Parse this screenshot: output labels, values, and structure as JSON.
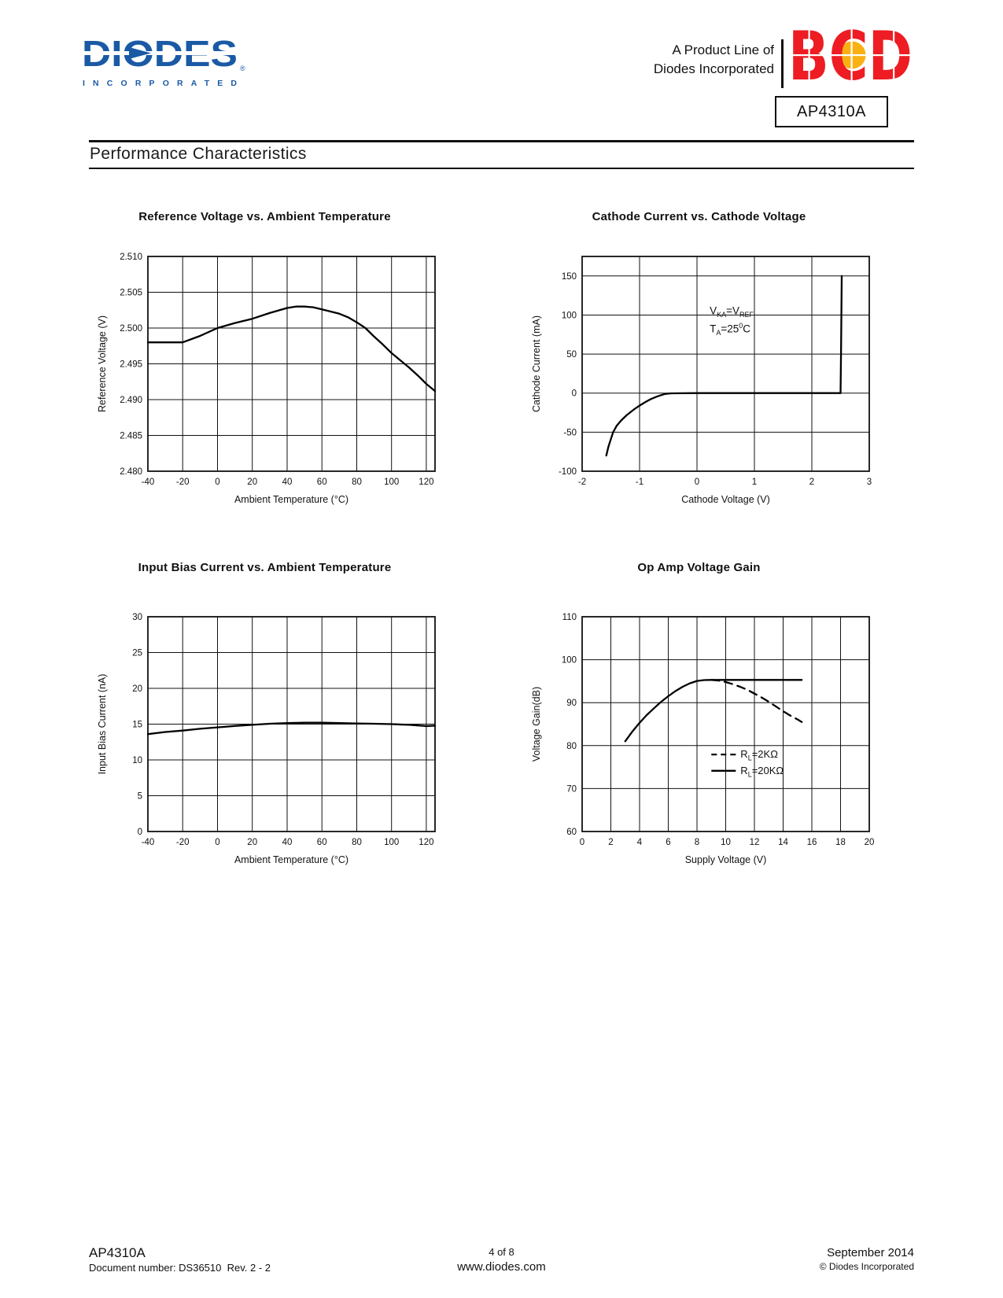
{
  "header": {
    "logo": {
      "word": "DIODES",
      "sub": "INCORPORATED",
      "reg_mark": "®",
      "blue": "#1a5aa5"
    },
    "tagline_line1": "A Product Line of",
    "tagline_line2": "Diodes Incorporated",
    "bcd": {
      "letters": "BCD",
      "red": "#ee1c23",
      "dot": "#f9b013"
    },
    "part_box": "AP4310A"
  },
  "section_title": "Performance Characteristics",
  "chart_data": [
    {
      "id": "reference-voltage-vs-ambient-temperature",
      "type": "line",
      "title": "Reference Voltage vs. Ambient Temperature",
      "xlabel": "Ambient Temperature (°C)",
      "ylabel": "Reference Voltage (V)",
      "xlim": [
        -40,
        125
      ],
      "ylim": [
        2.48,
        2.51
      ],
      "grid": "on",
      "xticks": [
        -40,
        -20,
        0,
        20,
        40,
        60,
        80,
        100,
        120
      ],
      "xtick_labels": [
        "-40",
        "-20",
        "0",
        "20",
        "40",
        "60",
        "80",
        "100",
        "120"
      ],
      "yticks": [
        2.48,
        2.485,
        2.49,
        2.495,
        2.5,
        2.505,
        2.51
      ],
      "ytick_labels": [
        "2.480",
        "2.485",
        "2.490",
        "2.495",
        "2.500",
        "2.505",
        "2.510"
      ],
      "series": [
        {
          "name": "reference-voltage",
          "style": "solid",
          "points": [
            [
              -40,
              2.498
            ],
            [
              -20,
              2.498
            ],
            [
              -10,
              2.4989
            ],
            [
              0,
              2.5
            ],
            [
              10,
              2.5007
            ],
            [
              20,
              2.5013
            ],
            [
              30,
              2.5021
            ],
            [
              40,
              2.5028
            ],
            [
              45,
              2.503
            ],
            [
              50,
              2.503
            ],
            [
              55,
              2.5029
            ],
            [
              60,
              2.5026
            ],
            [
              70,
              2.502
            ],
            [
              75,
              2.5015
            ],
            [
              80,
              2.5008
            ],
            [
              85,
              2.5
            ],
            [
              90,
              2.4988
            ],
            [
              95,
              2.4977
            ],
            [
              100,
              2.4965
            ],
            [
              105,
              2.4955
            ],
            [
              110,
              2.4945
            ],
            [
              115,
              2.4934
            ],
            [
              120,
              2.4922
            ],
            [
              125,
              2.4912
            ]
          ]
        }
      ]
    },
    {
      "id": "cathode-current-vs-cathode-voltage",
      "type": "line",
      "title": "Cathode Current vs. Cathode Voltage",
      "xlabel": "Cathode Voltage (V)",
      "ylabel": "Cathode Current (mA)",
      "xlim": [
        -2,
        3
      ],
      "ylim": [
        -100,
        175
      ],
      "grid": "on",
      "xticks": [
        -2,
        -1,
        0,
        1,
        2,
        3
      ],
      "xtick_labels": [
        "-2",
        "-1",
        "0",
        "1",
        "2",
        "3"
      ],
      "yticks": [
        -100,
        -50,
        0,
        50,
        100,
        150
      ],
      "ytick_labels": [
        "-100",
        "-50",
        "0",
        "50",
        "100",
        "150"
      ],
      "series": [
        {
          "name": "cathode-current",
          "style": "solid",
          "points": [
            [
              -1.58,
              -80
            ],
            [
              -1.54,
              -68
            ],
            [
              -1.5,
              -59
            ],
            [
              -1.46,
              -50
            ],
            [
              -1.4,
              -42
            ],
            [
              -1.32,
              -35
            ],
            [
              -1.22,
              -28
            ],
            [
              -1.1,
              -21
            ],
            [
              -1,
              -16
            ],
            [
              -0.9,
              -11.5
            ],
            [
              -0.8,
              -7.5
            ],
            [
              -0.7,
              -4.5
            ],
            [
              -0.62,
              -2.5
            ],
            [
              -0.55,
              -1
            ],
            [
              -0.45,
              -0.3
            ],
            [
              0,
              0
            ],
            [
              1,
              0
            ],
            [
              2,
              0
            ],
            [
              2.5,
              0
            ],
            [
              2.51,
              60
            ],
            [
              2.52,
              150
            ]
          ]
        }
      ],
      "annotation": {
        "x": 0.22,
        "lines": [
          {
            "y": 101,
            "tokens": [
              {
                "t": "V"
              },
              {
                "s": "KA"
              },
              {
                "t": "=V"
              },
              {
                "s": "REF"
              }
            ]
          },
          {
            "y": 78,
            "tokens": [
              {
                "t": "T"
              },
              {
                "s": "A"
              },
              {
                "t": "=25"
              },
              {
                "u": "0"
              },
              {
                "t": "C"
              }
            ]
          }
        ]
      }
    },
    {
      "id": "input-bias-current-vs-ambient-temperature",
      "type": "line",
      "title": "Input Bias Current vs. Ambient Temperature",
      "xlabel": "Ambient Temperature (°C)",
      "ylabel": "Input Bias Current (nA)",
      "xlim": [
        -40,
        125
      ],
      "ylim": [
        0,
        30
      ],
      "grid": "on",
      "xticks": [
        -40,
        -20,
        0,
        20,
        40,
        60,
        80,
        100,
        120
      ],
      "xtick_labels": [
        "-40",
        "-20",
        "0",
        "20",
        "40",
        "60",
        "80",
        "100",
        "120"
      ],
      "yticks": [
        0,
        5,
        10,
        15,
        20,
        25,
        30
      ],
      "ytick_labels": [
        "0",
        "5",
        "10",
        "15",
        "20",
        "25",
        "30"
      ],
      "series": [
        {
          "name": "input-bias-current",
          "style": "solid",
          "points": [
            [
              -40,
              13.6
            ],
            [
              -30,
              13.9
            ],
            [
              -20,
              14.1
            ],
            [
              -10,
              14.35
            ],
            [
              0,
              14.55
            ],
            [
              10,
              14.75
            ],
            [
              20,
              14.9
            ],
            [
              30,
              15.05
            ],
            [
              40,
              15.15
            ],
            [
              50,
              15.2
            ],
            [
              60,
              15.2
            ],
            [
              70,
              15.15
            ],
            [
              80,
              15.1
            ],
            [
              90,
              15.05
            ],
            [
              100,
              15
            ],
            [
              110,
              14.9
            ],
            [
              120,
              14.72
            ],
            [
              125,
              14.78
            ]
          ]
        }
      ]
    },
    {
      "id": "op-amp-voltage-gain",
      "type": "line",
      "title": "Op Amp Voltage Gain",
      "xlabel": "Supply Voltage (V)",
      "ylabel": "Voltage Gain(dB)",
      "xlim": [
        0,
        20
      ],
      "ylim": [
        60,
        110
      ],
      "grid": "on",
      "xticks": [
        0,
        2,
        4,
        6,
        8,
        10,
        12,
        14,
        16,
        18,
        20
      ],
      "xtick_labels": [
        "0",
        "2",
        "4",
        "6",
        "8",
        "10",
        "12",
        "14",
        "16",
        "18",
        "20"
      ],
      "yticks": [
        60,
        70,
        80,
        90,
        100,
        110
      ],
      "ytick_labels": [
        "60",
        "70",
        "80",
        "90",
        "100",
        "110"
      ],
      "series": [
        {
          "name": "RL-20K-ohm",
          "style": "solid",
          "points": [
            [
              3,
              81
            ],
            [
              3.5,
              83.3
            ],
            [
              4,
              85.3
            ],
            [
              4.5,
              87.1
            ],
            [
              5,
              88.7
            ],
            [
              5.5,
              90.2
            ],
            [
              6,
              91.5
            ],
            [
              6.5,
              92.7
            ],
            [
              7,
              93.7
            ],
            [
              7.5,
              94.5
            ],
            [
              8,
              95.05
            ],
            [
              8.5,
              95.25
            ],
            [
              9,
              95.3
            ],
            [
              11,
              95.3
            ],
            [
              13,
              95.3
            ],
            [
              15.3,
              95.3
            ]
          ]
        },
        {
          "name": "RL-2K-ohm",
          "style": "dashed",
          "points": [
            [
              9,
              95.3
            ],
            [
              9.5,
              95.15
            ],
            [
              10,
              94.8
            ],
            [
              10.5,
              94.3
            ],
            [
              11,
              93.7
            ],
            [
              11.5,
              93
            ],
            [
              12,
              92.1
            ],
            [
              12.5,
              91.2
            ],
            [
              13,
              90.2
            ],
            [
              13.5,
              89.1
            ],
            [
              14,
              88
            ],
            [
              14.5,
              87
            ],
            [
              15,
              86.1
            ],
            [
              15.3,
              85.5
            ]
          ]
        }
      ],
      "legend": {
        "x": 9,
        "rows": [
          {
            "style": "dashed",
            "y": 77.2,
            "tokens": [
              {
                "t": "R"
              },
              {
                "s": "L"
              },
              {
                "t": "=2KΩ"
              }
            ]
          },
          {
            "style": "solid",
            "y": 73.4,
            "tokens": [
              {
                "t": "R"
              },
              {
                "s": "L"
              },
              {
                "t": "=20KΩ"
              }
            ]
          }
        ]
      }
    }
  ],
  "footer": {
    "part": "AP4310A",
    "doc_number": "Document number: DS36510  Rev. 2 - 2",
    "page_info": "4 of 8",
    "website": "www.diodes.com",
    "date": "September 2014",
    "copyright": "© Diodes Incorporated"
  }
}
